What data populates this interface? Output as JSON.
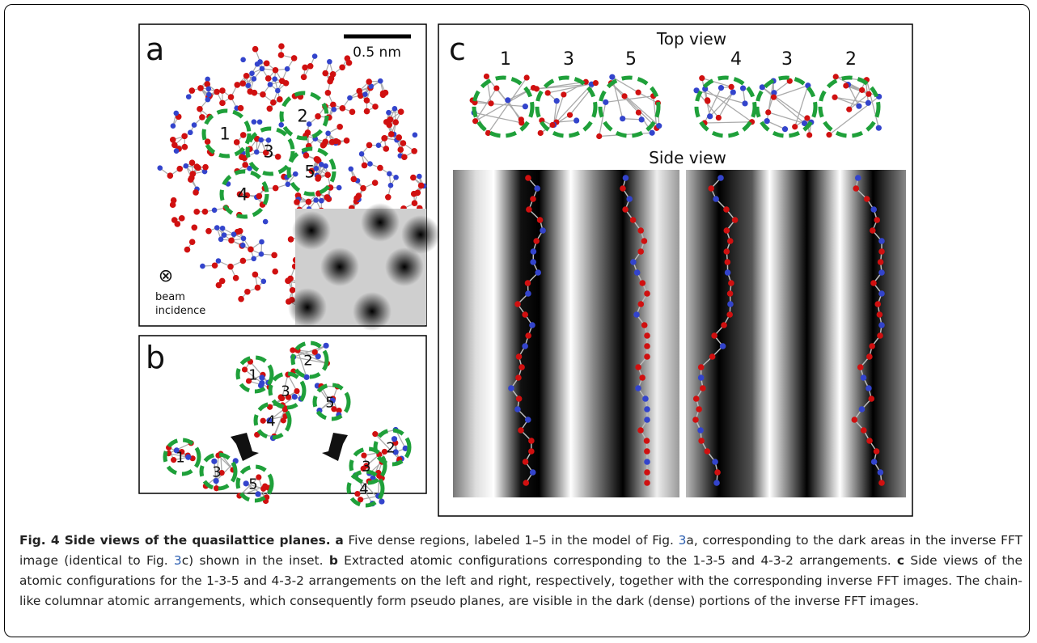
{
  "figure": {
    "panels": {
      "a": {
        "label": "a",
        "scale_bar": "0.5 nm",
        "regions": [
          "1",
          "2",
          "3",
          "4",
          "5"
        ],
        "beam_symbol": "⊗",
        "beam_label": [
          "beam",
          "incidence"
        ]
      },
      "b": {
        "label": "b",
        "regions": [
          "1",
          "2",
          "3",
          "5",
          "4",
          "1",
          "3",
          "5",
          "2",
          "3",
          "4"
        ]
      },
      "c": {
        "label": "c",
        "top_view_title": "Top view",
        "top_view_labels": [
          "1",
          "3",
          "5",
          "4",
          "3",
          "2"
        ],
        "side_view_title": "Side view"
      }
    },
    "caption": [
      {
        "text": "Fig. 4 Side views of the quasilattice planes.",
        "style": "bold"
      },
      {
        "text": "a",
        "style": "bold"
      },
      {
        "text": "Five dense regions, labeled 1–5 in the model of Fig.",
        "style": "normal"
      },
      {
        "text": "3",
        "style": "link"
      },
      {
        "text": "a, corresponding to the dark areas in the inverse FFT image (identical to Fig.",
        "style": "normal"
      },
      {
        "text": "3",
        "style": "link"
      },
      {
        "text": "c) shown in the inset.",
        "style": "normal"
      },
      {
        "text": "b",
        "style": "bold"
      },
      {
        "text": "Extracted atomic configurations corresponding to the 1-3-5 and 4-3-2 arrangements.",
        "style": "normal"
      },
      {
        "text": "c",
        "style": "bold"
      },
      {
        "text": "Side views of the atomic configurations for the 1-3-5 and 4-3-2 arrangements on the left and right, respectively, together with the corresponding inverse FFT images. The chain-like columnar atomic arrangements, which consequently form pseudo planes, are visible in the dark (dense) portions of the inverse FFT images.",
        "style": "normal"
      }
    ]
  }
}
